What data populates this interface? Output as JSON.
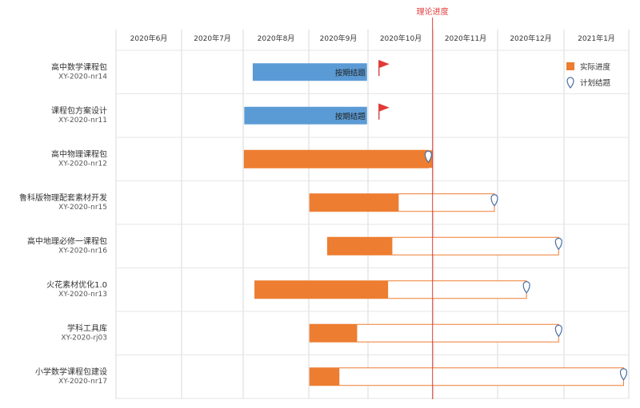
{
  "chart_data": {
    "type": "gantt",
    "x_axis": {
      "type": "date",
      "ticks": [
        "2020年6月",
        "2020年7月",
        "2020年8月",
        "2020年9月",
        "2020年10月",
        "2020年11月",
        "2020年12月",
        "2021年1月"
      ],
      "range": [
        "2020-06-01",
        "2021-01-31"
      ]
    },
    "reference_line": {
      "label": "理论进度",
      "date": "2020-10-31",
      "color": "#e23a3a"
    },
    "legend": {
      "position": "top-right",
      "items": [
        {
          "key": "actual",
          "label": "实际进度",
          "color": "#ed7d31"
        },
        {
          "key": "plan",
          "label": "计划结题",
          "color": "#4a6fa5"
        }
      ]
    },
    "tasks": [
      {
        "name": "高中数学课程包",
        "code": "XY-2020-nr14",
        "start": "2020-08-05",
        "actual_end": "2020-09-30",
        "plan_end": "2020-09-30",
        "status": "按期结题",
        "color": "#5b9bd5",
        "flag": true
      },
      {
        "name": "课程包方案设计",
        "code": "XY-2020-nr11",
        "start": "2020-08-01",
        "actual_end": "2020-09-30",
        "plan_end": "2020-09-30",
        "status": "按期结题",
        "color": "#5b9bd5",
        "flag": true
      },
      {
        "name": "高中物理课程包",
        "code": "XY-2020-nr12",
        "start": "2020-08-01",
        "actual_end": "2020-10-31",
        "plan_end": "2020-10-29",
        "color": "#ed7d31"
      },
      {
        "name": "鲁科版物理配套素材开发",
        "code": "XY-2020-nr15",
        "start": "2020-09-01",
        "actual_end": "2020-10-15",
        "plan_end": "2020-11-29",
        "color": "#ed7d31"
      },
      {
        "name": "高中地理必修一课程包",
        "code": "XY-2020-nr16",
        "start": "2020-09-10",
        "actual_end": "2020-10-12",
        "plan_end": "2020-12-29",
        "color": "#ed7d31"
      },
      {
        "name": "火花素材优化1.0",
        "code": "XY-2020-nr13",
        "start": "2020-08-06",
        "actual_end": "2020-10-10",
        "plan_end": "2020-12-14",
        "color": "#ed7d31"
      },
      {
        "name": "学科工具库",
        "code": "XY-2020-rj03",
        "start": "2020-09-01",
        "actual_end": "2020-09-25",
        "plan_end": "2020-12-29",
        "color": "#ed7d31"
      },
      {
        "name": "小学数学课程包建设",
        "code": "XY-2020-nr17",
        "start": "2020-09-01",
        "actual_end": "2020-09-16",
        "plan_end": "2021-01-29",
        "color": "#ed7d31"
      }
    ]
  }
}
